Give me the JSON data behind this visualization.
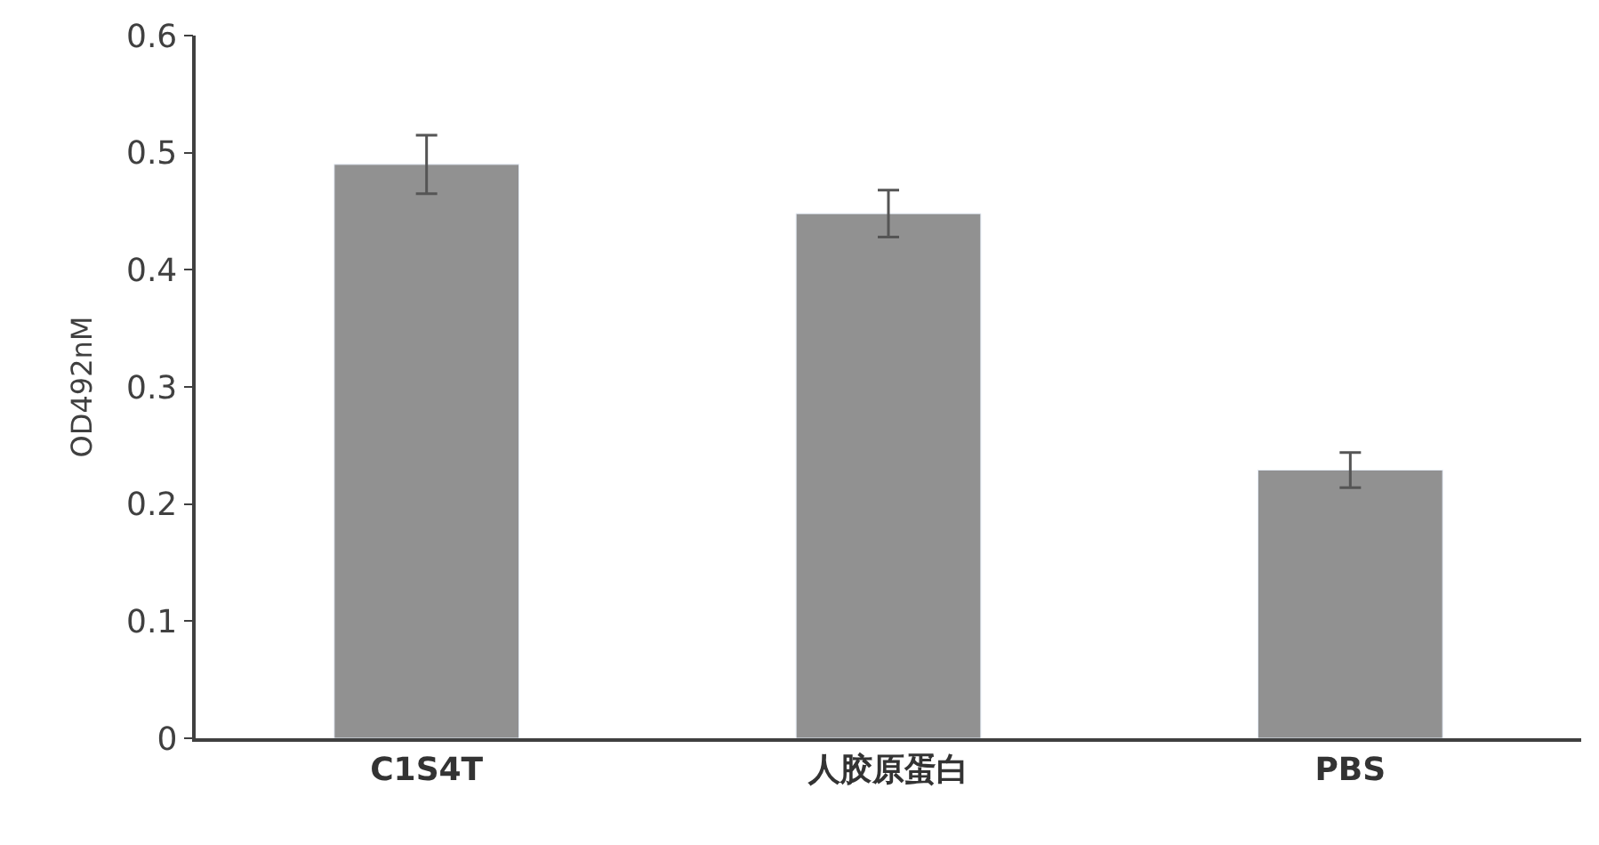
{
  "chart_data": {
    "type": "bar",
    "ylabel": "OD492nM",
    "categories": [
      "C1S4T",
      "人胶原蛋白",
      "PBS"
    ],
    "values": [
      0.49,
      0.448,
      0.229
    ],
    "errors": [
      0.025,
      0.02,
      0.015
    ],
    "color": "#919191",
    "ylim": [
      0,
      0.6
    ],
    "yticks": [
      {
        "value": 0,
        "label": "0"
      },
      0.1,
      0.2,
      0.3,
      0.4,
      0.5,
      0.6
    ]
  }
}
